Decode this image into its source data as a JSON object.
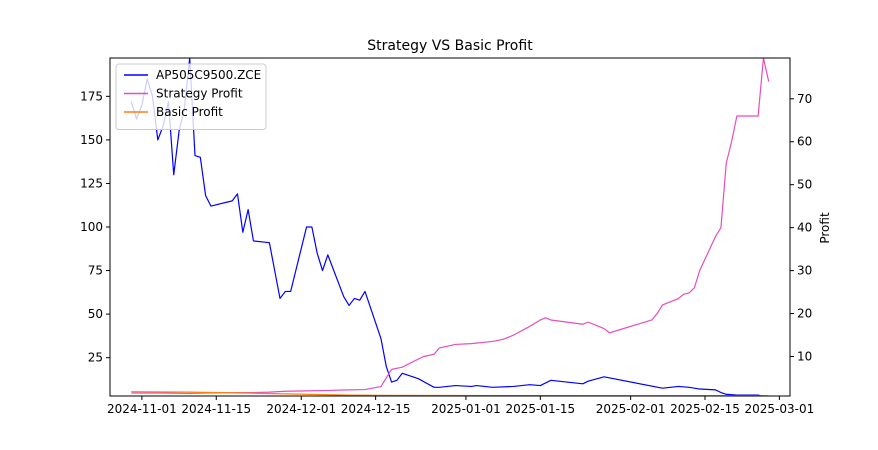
{
  "chart_data": {
    "type": "line",
    "title": "Strategy VS Basic Profit",
    "xlabel": "",
    "ylabel_left": "",
    "ylabel_right": "Profit",
    "x_range": [
      "2024-10-26",
      "2025-03-03"
    ],
    "y_left_range": [
      3,
      197
    ],
    "y_right_range": [
      0.8,
      79.5
    ],
    "x_ticks": [
      "2024-11-01",
      "2024-11-15",
      "2024-12-01",
      "2024-12-15",
      "2025-01-01",
      "2025-01-15",
      "2025-02-01",
      "2025-02-15",
      "2025-03-01"
    ],
    "y_left_ticks": [
      25,
      50,
      75,
      100,
      125,
      150,
      175
    ],
    "y_right_ticks": [
      10,
      20,
      30,
      40,
      50,
      60,
      70
    ],
    "legend_position": "upper-left",
    "grid": false,
    "series": [
      {
        "name": "AP505C9500.ZCE",
        "axis": "left",
        "color": "#0000ff",
        "points": [
          [
            "2024-10-30",
            172
          ],
          [
            "2024-10-31",
            162
          ],
          [
            "2024-11-01",
            170
          ],
          [
            "2024-11-02",
            185
          ],
          [
            "2024-11-03",
            175
          ],
          [
            "2024-11-04",
            150
          ],
          [
            "2024-11-05",
            158
          ],
          [
            "2024-11-06",
            172
          ],
          [
            "2024-11-07",
            130
          ],
          [
            "2024-11-08",
            155
          ],
          [
            "2024-11-09",
            168
          ],
          [
            "2024-11-10",
            197
          ],
          [
            "2024-11-11",
            141
          ],
          [
            "2024-11-12",
            140
          ],
          [
            "2024-11-13",
            118
          ],
          [
            "2024-11-14",
            112
          ],
          [
            "2024-11-18",
            115
          ],
          [
            "2024-11-19",
            119
          ],
          [
            "2024-11-20",
            97
          ],
          [
            "2024-11-21",
            110
          ],
          [
            "2024-11-22",
            92
          ],
          [
            "2024-11-25",
            91
          ],
          [
            "2024-11-26",
            75
          ],
          [
            "2024-11-27",
            59
          ],
          [
            "2024-11-28",
            63
          ],
          [
            "2024-11-29",
            63
          ],
          [
            "2024-12-02",
            100
          ],
          [
            "2024-12-03",
            100
          ],
          [
            "2024-12-04",
            85
          ],
          [
            "2024-12-05",
            75
          ],
          [
            "2024-12-06",
            84
          ],
          [
            "2024-12-09",
            60
          ],
          [
            "2024-12-10",
            55
          ],
          [
            "2024-12-11",
            59
          ],
          [
            "2024-12-12",
            58
          ],
          [
            "2024-12-13",
            63
          ],
          [
            "2024-12-16",
            36
          ],
          [
            "2024-12-17",
            20
          ],
          [
            "2024-12-18",
            11
          ],
          [
            "2024-12-19",
            12
          ],
          [
            "2024-12-20",
            16
          ],
          [
            "2024-12-23",
            13
          ],
          [
            "2024-12-26",
            8
          ],
          [
            "2024-12-27",
            8
          ],
          [
            "2024-12-30",
            9
          ],
          [
            "2025-01-02",
            8.5
          ],
          [
            "2025-01-03",
            9
          ],
          [
            "2025-01-06",
            8
          ],
          [
            "2025-01-10",
            8.5
          ],
          [
            "2025-01-13",
            9.5
          ],
          [
            "2025-01-15",
            9
          ],
          [
            "2025-01-17",
            12
          ],
          [
            "2025-01-20",
            11
          ],
          [
            "2025-01-23",
            10
          ],
          [
            "2025-01-24",
            11.5
          ],
          [
            "2025-01-27",
            14
          ],
          [
            "2025-02-07",
            7.5
          ],
          [
            "2025-02-10",
            8.5
          ],
          [
            "2025-02-12",
            8
          ],
          [
            "2025-02-14",
            7
          ],
          [
            "2025-02-17",
            6.5
          ],
          [
            "2025-02-18",
            5
          ],
          [
            "2025-02-19",
            4
          ],
          [
            "2025-02-21",
            3.5
          ],
          [
            "2025-02-25",
            3.5
          ],
          [
            "2025-02-27",
            2
          ]
        ]
      },
      {
        "name": "Strategy Profit",
        "axis": "right",
        "color": "#e64dbf",
        "points": [
          [
            "2024-10-30",
            1.5
          ],
          [
            "2024-11-05",
            1.5
          ],
          [
            "2024-11-10",
            1.4
          ],
          [
            "2024-11-13",
            1.5
          ],
          [
            "2024-11-18",
            1.6
          ],
          [
            "2024-11-22",
            1.6
          ],
          [
            "2024-11-25",
            1.7
          ],
          [
            "2024-11-28",
            1.9
          ],
          [
            "2024-12-02",
            2.0
          ],
          [
            "2024-12-06",
            2.1
          ],
          [
            "2024-12-09",
            2.2
          ],
          [
            "2024-12-13",
            2.3
          ],
          [
            "2024-12-16",
            3.0
          ],
          [
            "2024-12-18",
            7.0
          ],
          [
            "2024-12-20",
            7.5
          ],
          [
            "2024-12-24",
            10.0
          ],
          [
            "2024-12-26",
            10.5
          ],
          [
            "2024-12-27",
            12.0
          ],
          [
            "2024-12-30",
            12.8
          ],
          [
            "2025-01-02",
            13.0
          ],
          [
            "2025-01-06",
            13.5
          ],
          [
            "2025-01-08",
            14.0
          ],
          [
            "2025-01-10",
            15.0
          ],
          [
            "2025-01-13",
            17.0
          ],
          [
            "2025-01-15",
            18.5
          ],
          [
            "2025-01-16",
            19.0
          ],
          [
            "2025-01-17",
            18.5
          ],
          [
            "2025-01-20",
            18.0
          ],
          [
            "2025-01-23",
            17.5
          ],
          [
            "2025-01-24",
            18.0
          ],
          [
            "2025-01-27",
            16.5
          ],
          [
            "2025-01-28",
            15.5
          ],
          [
            "2025-02-05",
            18.5
          ],
          [
            "2025-02-06",
            20.0
          ],
          [
            "2025-02-07",
            22.0
          ],
          [
            "2025-02-10",
            23.5
          ],
          [
            "2025-02-11",
            24.5
          ],
          [
            "2025-02-12",
            24.8
          ],
          [
            "2025-02-13",
            26.0
          ],
          [
            "2025-02-14",
            30.0
          ],
          [
            "2025-02-17",
            38.0
          ],
          [
            "2025-02-18",
            40.0
          ],
          [
            "2025-02-19",
            55.0
          ],
          [
            "2025-02-20",
            60.0
          ],
          [
            "2025-02-21",
            66.0
          ],
          [
            "2025-02-24",
            66.0
          ],
          [
            "2025-02-25",
            66.0
          ],
          [
            "2025-02-26",
            79.5
          ],
          [
            "2025-02-27",
            74.0
          ]
        ]
      },
      {
        "name": "Basic Profit",
        "axis": "right",
        "color": "#ff7f0e",
        "points": [
          [
            "2024-10-30",
            1.8
          ],
          [
            "2024-11-10",
            1.7
          ],
          [
            "2024-11-20",
            1.5
          ],
          [
            "2024-11-28",
            1.3
          ],
          [
            "2024-12-10",
            1.0
          ],
          [
            "2024-12-16",
            0.95
          ],
          [
            "2025-01-06",
            0.9
          ],
          [
            "2025-02-27",
            0.85
          ]
        ]
      }
    ]
  }
}
